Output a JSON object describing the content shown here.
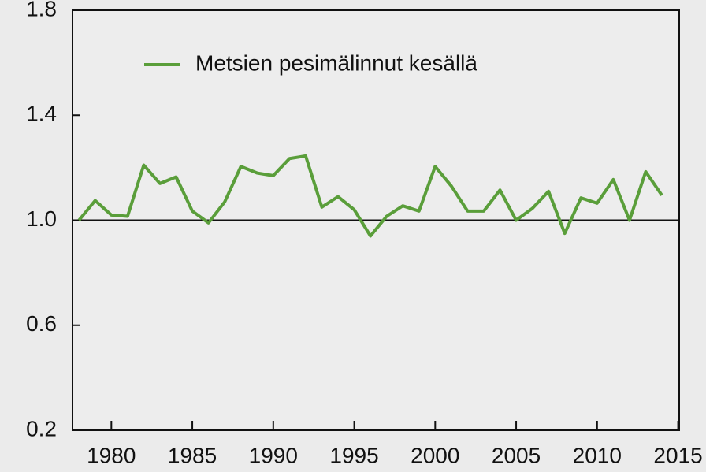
{
  "chart_data": {
    "type": "line",
    "x": [
      1978,
      1979,
      1980,
      1981,
      1982,
      1983,
      1984,
      1985,
      1986,
      1987,
      1988,
      1989,
      1990,
      1991,
      1992,
      1993,
      1994,
      1995,
      1996,
      1997,
      1998,
      1999,
      2000,
      2001,
      2002,
      2003,
      2004,
      2005,
      2006,
      2007,
      2008,
      2009,
      2010,
      2011,
      2012,
      2013,
      2014
    ],
    "series": [
      {
        "name": "Metsien pesimälinnut kesällä",
        "color": "#5a9e3a",
        "values": [
          1.0,
          1.075,
          1.02,
          1.015,
          1.21,
          1.14,
          1.165,
          1.035,
          0.99,
          1.07,
          1.205,
          1.18,
          1.17,
          1.235,
          1.245,
          1.05,
          1.09,
          1.04,
          0.94,
          1.015,
          1.055,
          1.035,
          1.205,
          1.13,
          1.035,
          1.035,
          1.115,
          1.0,
          1.045,
          1.11,
          0.95,
          1.085,
          1.065,
          1.155,
          1.0,
          1.185,
          1.095
        ]
      }
    ],
    "xlim": [
      1977.6,
      2015.07
    ],
    "xticks": [
      1980,
      1985,
      1990,
      1995,
      2000,
      2005,
      2010,
      2015
    ],
    "ylim": [
      0.2,
      1.8
    ],
    "yticks": [
      0.2,
      0.6,
      {
        "value": 1,
        "label": "1.0"
      },
      1.4,
      1.8
    ],
    "reference_line": 1,
    "legend": "top-left"
  }
}
